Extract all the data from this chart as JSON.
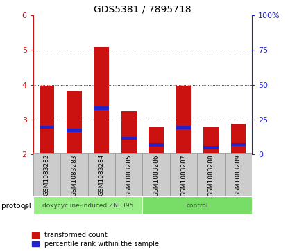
{
  "title": "GDS5381 / 7895718",
  "samples": [
    "GSM1083282",
    "GSM1083283",
    "GSM1083284",
    "GSM1083285",
    "GSM1083286",
    "GSM1083287",
    "GSM1083288",
    "GSM1083289"
  ],
  "red_values": [
    3.97,
    3.84,
    5.08,
    3.24,
    2.77,
    3.97,
    2.77,
    2.88
  ],
  "blue_values": [
    2.78,
    2.69,
    3.33,
    2.46,
    2.27,
    2.77,
    2.2,
    2.28
  ],
  "ylim": [
    2.0,
    6.0
  ],
  "yticks_left": [
    2,
    3,
    4,
    5,
    6
  ],
  "yticks_right": [
    0,
    25,
    50,
    75,
    100
  ],
  "bar_width": 0.55,
  "red_color": "#cc1111",
  "blue_color": "#2222cc",
  "protocol_groups": [
    {
      "label": "doxycycline-induced ZNF395",
      "start": 0,
      "end": 4,
      "color": "#99ee88"
    },
    {
      "label": "control",
      "start": 4,
      "end": 8,
      "color": "#77dd66"
    }
  ],
  "protocol_label": "protocol",
  "cell_bg_color": "#cccccc",
  "cell_border_color": "#999999",
  "legend_red_label": "transformed count",
  "legend_blue_label": "percentile rank within the sample",
  "bar_base": 2.0,
  "blue_bar_height": 0.09
}
